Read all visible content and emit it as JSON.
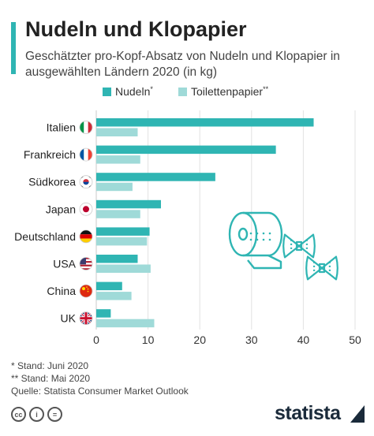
{
  "header": {
    "title": "Nudeln und Klopapier",
    "subtitle": "Geschätzter pro-Kopf-Absatz von Nudeln und Klopapier in ausgewählten Ländern 2020 (in kg)"
  },
  "colors": {
    "accent": "#2fb5b3",
    "nudeln": "#2fb5b3",
    "toilettenpapier": "#9fdad8"
  },
  "chart_data": {
    "type": "bar",
    "orientation": "horizontal",
    "categories": [
      "Italien",
      "Frankreich",
      "Südkorea",
      "Japan",
      "Deutschland",
      "USA",
      "China",
      "UK"
    ],
    "flags": [
      "italy-flag-icon",
      "france-flag-icon",
      "south-korea-flag-icon",
      "japan-flag-icon",
      "germany-flag-icon",
      "usa-flag-icon",
      "china-flag-icon",
      "uk-flag-icon"
    ],
    "series": [
      {
        "name": "Nudeln",
        "marker": "*",
        "values": [
          42,
          34.7,
          23,
          12.5,
          10.3,
          8,
          5,
          2.8
        ]
      },
      {
        "name": "Toilettenpapier",
        "marker": "**",
        "values": [
          8,
          8.5,
          7,
          8.5,
          9.8,
          10.5,
          6.8,
          11.2
        ]
      }
    ],
    "xlim": [
      0,
      50
    ],
    "xticks": [
      "0",
      "10",
      "20",
      "30",
      "40",
      "50"
    ],
    "grid": true,
    "legend": "top-right"
  },
  "footnotes": {
    "note1": "*   Stand: Juni 2020",
    "note2": "** Stand: Mai 2020",
    "source": "Quelle: Statista Consumer Market Outlook"
  },
  "branding": {
    "name": "statista"
  }
}
